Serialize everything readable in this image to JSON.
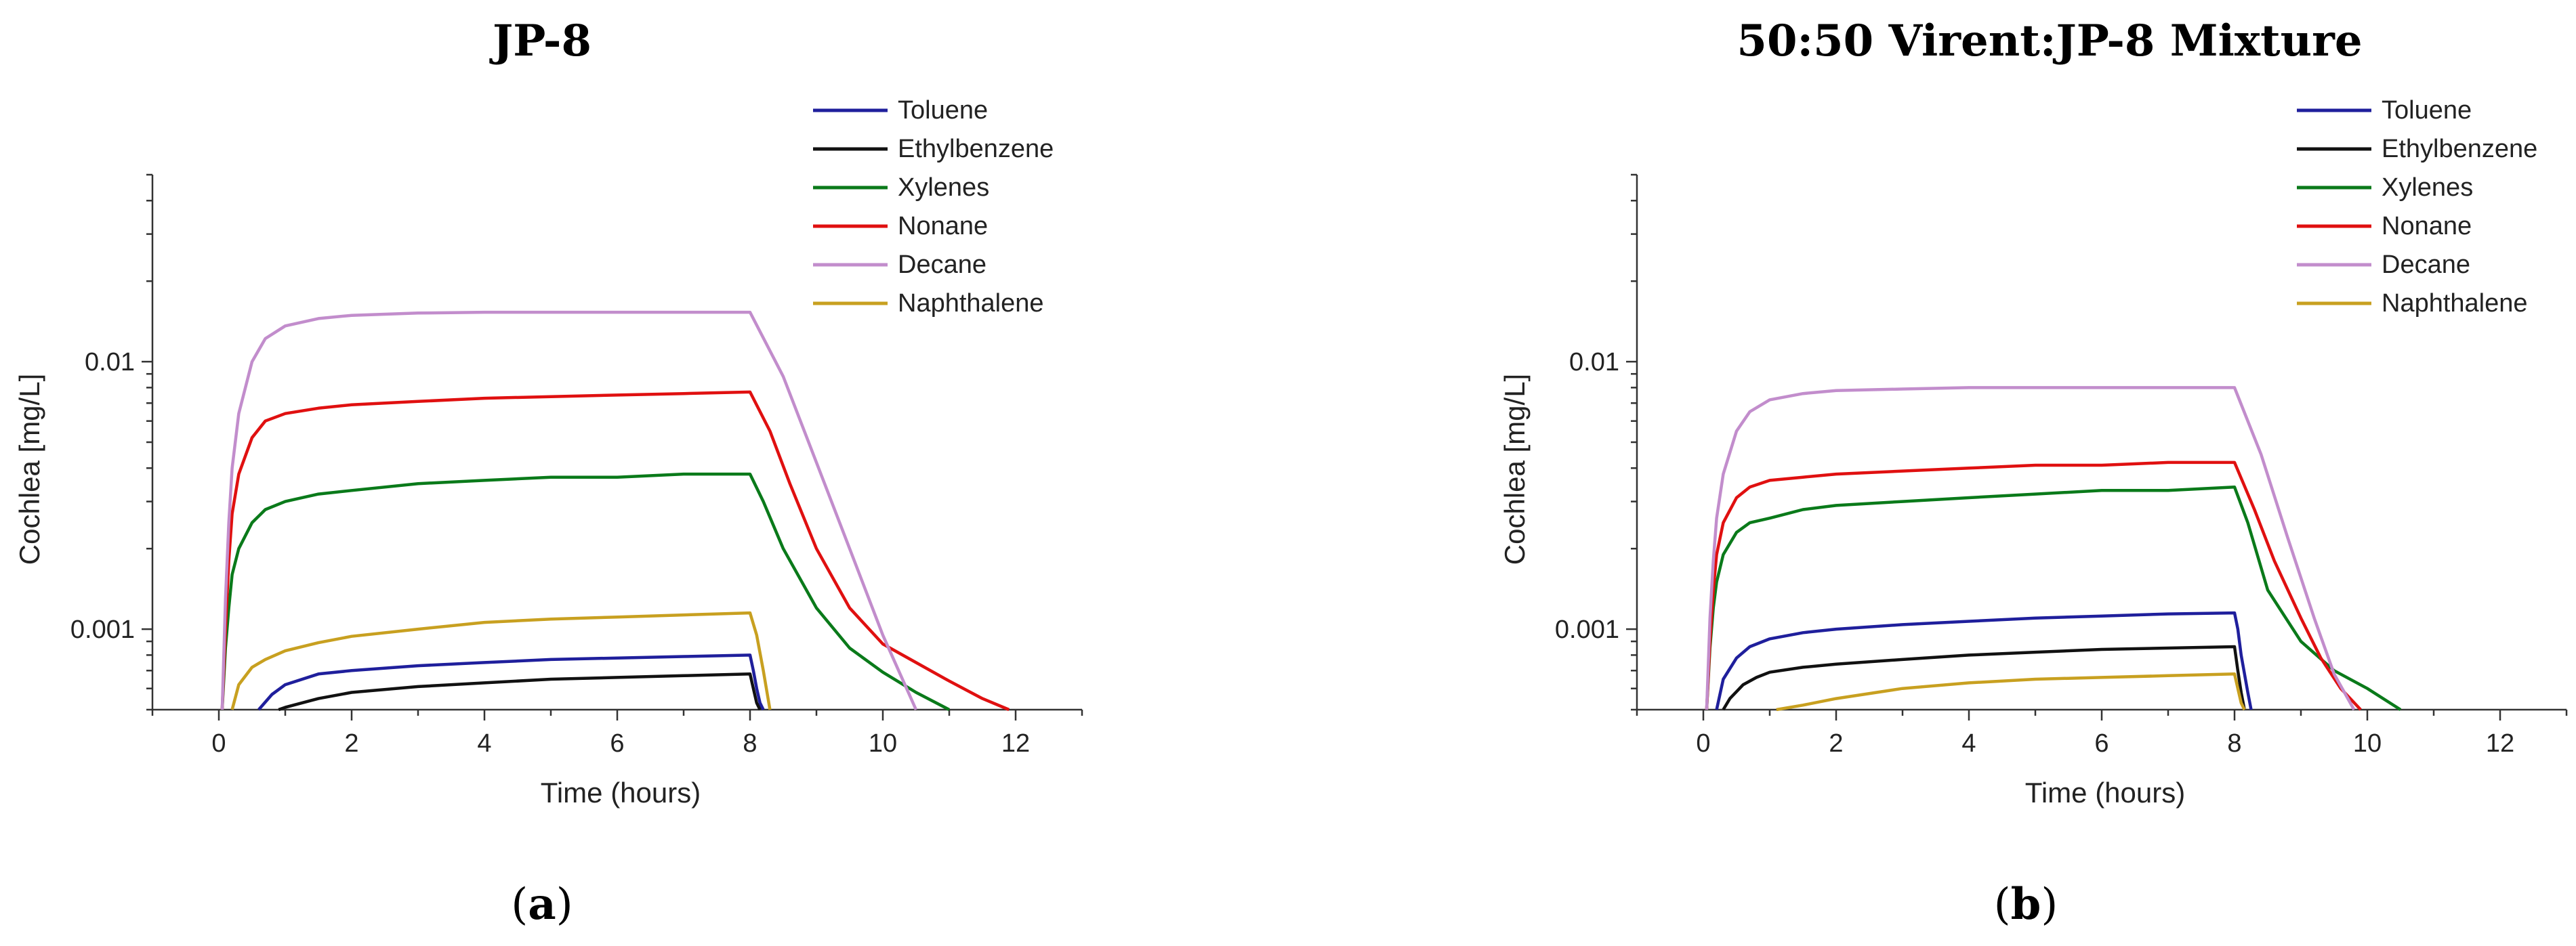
{
  "chart_data": [
    {
      "type": "line",
      "title": "JP-8",
      "caption_prefix": "(",
      "caption_letter": "a",
      "caption_suffix": ")",
      "xlabel": "Time (hours)",
      "ylabel": "Cochlea [mg/L]",
      "xlim": [
        -1,
        13
      ],
      "ylim": [
        0.0005,
        0.05
      ],
      "yscale": "log",
      "xticks": [
        0,
        2,
        4,
        6,
        8,
        10,
        12
      ],
      "yticks": [
        0.001,
        0.01
      ],
      "ytick_labels": [
        "0.001",
        "0.01"
      ],
      "legend_position": "top-right",
      "series": [
        {
          "name": "Toluene",
          "color": "#1f1f9c",
          "x": [
            0.6,
            0.8,
            1,
            1.5,
            2,
            3,
            4,
            5,
            6,
            7,
            8,
            8.05,
            8.1,
            8.15,
            8.2
          ],
          "y": [
            0.0005,
            0.00057,
            0.00062,
            0.00068,
            0.0007,
            0.00073,
            0.00075,
            0.00077,
            0.00078,
            0.00079,
            0.0008,
            0.0007,
            0.0006,
            0.00053,
            0.0005
          ]
        },
        {
          "name": "Ethylbenzene",
          "color": "#111111",
          "x": [
            0.9,
            1,
            1.5,
            2,
            3,
            4,
            5,
            6,
            7,
            8,
            8.05,
            8.1,
            8.15
          ],
          "y": [
            0.0005,
            0.00051,
            0.00055,
            0.00058,
            0.00061,
            0.00063,
            0.00065,
            0.00066,
            0.00067,
            0.00068,
            0.0006,
            0.00053,
            0.0005
          ]
        },
        {
          "name": "Xylenes",
          "color": "#0a7a1a",
          "x": [
            0.05,
            0.1,
            0.15,
            0.2,
            0.3,
            0.5,
            0.7,
            1,
            1.5,
            2,
            3,
            4,
            5,
            6,
            7,
            8,
            8.2,
            8.5,
            9,
            9.5,
            10,
            10.5,
            11
          ],
          "y": [
            0.0005,
            0.00085,
            0.0012,
            0.0016,
            0.002,
            0.0025,
            0.0028,
            0.003,
            0.0032,
            0.0033,
            0.0035,
            0.0036,
            0.0037,
            0.0037,
            0.0038,
            0.0038,
            0.003,
            0.002,
            0.0012,
            0.00085,
            0.00069,
            0.00058,
            0.0005
          ]
        },
        {
          "name": "Nonane",
          "color": "#e01010",
          "x": [
            0.05,
            0.1,
            0.15,
            0.2,
            0.3,
            0.5,
            0.7,
            1,
            1.5,
            2,
            3,
            4,
            5,
            6,
            7,
            8,
            8.3,
            8.6,
            9,
            9.5,
            10,
            10.5,
            11,
            11.5,
            11.9
          ],
          "y": [
            0.0005,
            0.001,
            0.0018,
            0.0027,
            0.0038,
            0.0052,
            0.006,
            0.0064,
            0.0067,
            0.0069,
            0.0071,
            0.0073,
            0.0074,
            0.0075,
            0.0076,
            0.0077,
            0.0055,
            0.0035,
            0.002,
            0.0012,
            0.00088,
            0.00075,
            0.00064,
            0.00055,
            0.0005
          ]
        },
        {
          "name": "Decane",
          "color": "#c28dcc",
          "x": [
            0.05,
            0.1,
            0.15,
            0.2,
            0.3,
            0.5,
            0.7,
            1,
            1.5,
            2,
            3,
            4,
            5,
            6,
            7,
            8,
            8.5,
            9,
            9.5,
            10,
            10.5
          ],
          "y": [
            0.0005,
            0.0013,
            0.0025,
            0.004,
            0.0064,
            0.01,
            0.0122,
            0.0136,
            0.0145,
            0.0149,
            0.0152,
            0.0153,
            0.0153,
            0.0153,
            0.0153,
            0.0153,
            0.0088,
            0.0042,
            0.002,
            0.00095,
            0.0005
          ]
        },
        {
          "name": "Naphthalene",
          "color": "#c8a020",
          "x": [
            0.2,
            0.3,
            0.5,
            0.7,
            1,
            1.5,
            2,
            3,
            4,
            5,
            6,
            7,
            8,
            8.1,
            8.2,
            8.3
          ],
          "y": [
            0.0005,
            0.00062,
            0.00072,
            0.00077,
            0.00083,
            0.00089,
            0.00094,
            0.001,
            0.00106,
            0.00109,
            0.00111,
            0.00113,
            0.00115,
            0.00095,
            0.0007,
            0.0005
          ]
        }
      ]
    },
    {
      "type": "line",
      "title": "50:50 Virent:JP-8 Mixture",
      "caption_prefix": "(",
      "caption_letter": "b",
      "caption_suffix": ")",
      "xlabel": "Time (hours)",
      "ylabel": "Cochlea [mg/L]",
      "xlim": [
        -1,
        13
      ],
      "ylim": [
        0.0005,
        0.05
      ],
      "yscale": "log",
      "xticks": [
        0,
        2,
        4,
        6,
        8,
        10,
        12
      ],
      "yticks": [
        0.001,
        0.01
      ],
      "ytick_labels": [
        "0.001",
        "0.01"
      ],
      "legend_position": "top-right",
      "series": [
        {
          "name": "Toluene",
          "color": "#1f1f9c",
          "x": [
            0.2,
            0.3,
            0.5,
            0.7,
            1,
            1.5,
            2,
            3,
            4,
            5,
            6,
            7,
            8,
            8.05,
            8.1,
            8.2,
            8.25
          ],
          "y": [
            0.0005,
            0.00065,
            0.00078,
            0.00086,
            0.00092,
            0.00097,
            0.001,
            0.00104,
            0.00107,
            0.0011,
            0.00112,
            0.00114,
            0.00115,
            0.001,
            0.0008,
            0.00058,
            0.0005
          ]
        },
        {
          "name": "Ethylbenzene",
          "color": "#111111",
          "x": [
            0.3,
            0.4,
            0.6,
            0.8,
            1,
            1.5,
            2,
            3,
            4,
            5,
            6,
            7,
            8,
            8.05,
            8.1,
            8.15
          ],
          "y": [
            0.0005,
            0.00055,
            0.00062,
            0.00066,
            0.00069,
            0.00072,
            0.00074,
            0.00077,
            0.0008,
            0.00082,
            0.00084,
            0.00085,
            0.00086,
            0.0007,
            0.00058,
            0.0005
          ]
        },
        {
          "name": "Xylenes",
          "color": "#0a7a1a",
          "x": [
            0.05,
            0.1,
            0.15,
            0.2,
            0.3,
            0.5,
            0.7,
            1,
            1.5,
            2,
            3,
            4,
            5,
            6,
            7,
            8,
            8.2,
            8.5,
            9,
            9.5,
            10,
            10.5
          ],
          "y": [
            0.0005,
            0.00085,
            0.0012,
            0.0015,
            0.0019,
            0.0023,
            0.0025,
            0.0026,
            0.0028,
            0.0029,
            0.003,
            0.0031,
            0.0032,
            0.0033,
            0.0033,
            0.0034,
            0.0025,
            0.0014,
            0.0009,
            0.0007,
            0.0006,
            0.0005
          ]
        },
        {
          "name": "Nonane",
          "color": "#e01010",
          "x": [
            0.05,
            0.1,
            0.15,
            0.2,
            0.3,
            0.5,
            0.7,
            1,
            1.5,
            2,
            3,
            4,
            5,
            6,
            7,
            8,
            8.3,
            8.6,
            9,
            9.3,
            9.6,
            9.9
          ],
          "y": [
            0.0005,
            0.0009,
            0.0014,
            0.0019,
            0.0025,
            0.0031,
            0.0034,
            0.0036,
            0.0037,
            0.0038,
            0.0039,
            0.004,
            0.0041,
            0.0041,
            0.0042,
            0.0042,
            0.0028,
            0.0018,
            0.0011,
            0.00078,
            0.0006,
            0.0005
          ]
        },
        {
          "name": "Decane",
          "color": "#c28dcc",
          "x": [
            0.05,
            0.1,
            0.15,
            0.2,
            0.3,
            0.5,
            0.7,
            1,
            1.5,
            2,
            3,
            4,
            5,
            6,
            7,
            8,
            8.4,
            8.8,
            9.2,
            9.5,
            9.8
          ],
          "y": [
            0.0005,
            0.0011,
            0.0018,
            0.0026,
            0.0038,
            0.0055,
            0.0065,
            0.0072,
            0.0076,
            0.0078,
            0.0079,
            0.008,
            0.008,
            0.008,
            0.008,
            0.008,
            0.0045,
            0.0022,
            0.0011,
            0.00068,
            0.0005
          ]
        },
        {
          "name": "Naphthalene",
          "color": "#c8a020",
          "x": [
            1.1,
            1.5,
            2,
            3,
            4,
            5,
            6,
            7,
            8,
            8.05,
            8.1,
            8.15
          ],
          "y": [
            0.0005,
            0.00052,
            0.00055,
            0.0006,
            0.00063,
            0.00065,
            0.00066,
            0.00067,
            0.00068,
            0.0006,
            0.00053,
            0.0005
          ]
        }
      ]
    }
  ]
}
